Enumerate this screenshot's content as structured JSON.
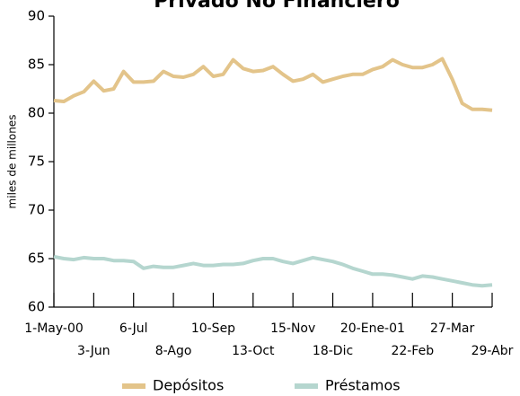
{
  "chart_data": {
    "type": "line",
    "title": "Privado No Financiero",
    "y_label": "miles de millones",
    "categories": [
      "1-May-00",
      null,
      null,
      null,
      "3-Jun",
      null,
      null,
      null,
      "6-Jul",
      null,
      null,
      null,
      "8-Ago",
      null,
      null,
      null,
      "10-Sep",
      null,
      null,
      null,
      "13-Oct",
      null,
      null,
      null,
      "15-Nov",
      null,
      null,
      null,
      "18-Dic",
      null,
      null,
      null,
      "20-Ene-01",
      null,
      null,
      null,
      "22-Feb",
      null,
      null,
      null,
      "27-Mar",
      null,
      null,
      null,
      "29-Abr"
    ],
    "series": [
      {
        "name": "Depósitos",
        "color": "#e3c48a",
        "values": [
          81.3,
          81.2,
          81.8,
          82.2,
          83.3,
          82.3,
          82.5,
          84.3,
          83.2,
          83.2,
          83.3,
          84.3,
          83.8,
          83.7,
          84.0,
          84.8,
          83.8,
          84.0,
          85.5,
          84.6,
          84.3,
          84.4,
          84.8,
          84.0,
          83.3,
          83.5,
          84.0,
          83.2,
          83.5,
          83.8,
          84.0,
          84.0,
          84.5,
          84.8,
          85.5,
          85.0,
          84.7,
          84.7,
          85.0,
          85.6,
          83.5,
          81.0,
          80.4,
          80.4,
          80.3
        ]
      },
      {
        "name": "Préstamos",
        "color": "#b5d6cf",
        "values": [
          65.2,
          65.0,
          64.9,
          65.1,
          65.0,
          65.0,
          64.8,
          64.8,
          64.7,
          64.0,
          64.2,
          64.1,
          64.1,
          64.3,
          64.5,
          64.3,
          64.3,
          64.4,
          64.4,
          64.5,
          64.8,
          65.0,
          65.0,
          64.7,
          64.5,
          64.8,
          65.1,
          64.9,
          64.7,
          64.4,
          64.0,
          63.7,
          63.4,
          63.4,
          63.3,
          63.1,
          62.9,
          63.2,
          63.1,
          62.9,
          62.7,
          62.5,
          62.3,
          62.2,
          62.3
        ]
      }
    ],
    "ylim": [
      60,
      90
    ],
    "yticks": [
      60,
      65,
      70,
      75,
      80,
      85,
      90
    ]
  }
}
